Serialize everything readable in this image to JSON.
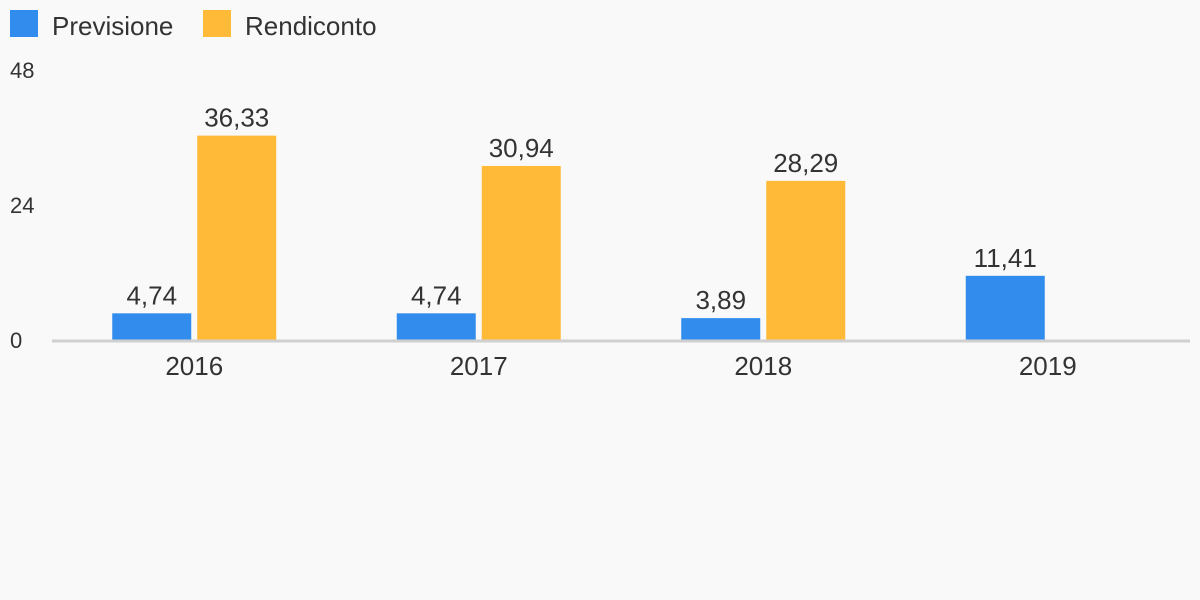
{
  "chart_data": {
    "type": "bar",
    "categories": [
      "2016",
      "2017",
      "2018",
      "2019"
    ],
    "series": [
      {
        "name": "Previsione",
        "color": "#318ced",
        "values": [
          4.74,
          4.74,
          3.89,
          11.41
        ],
        "labels": [
          "4,74",
          "4,74",
          "3,89",
          "11,41"
        ]
      },
      {
        "name": "Rendiconto",
        "color": "#ffba38",
        "values": [
          36.33,
          30.94,
          28.29,
          null
        ],
        "labels": [
          "36,33",
          "30,94",
          "28,29",
          null
        ]
      }
    ],
    "yticks": [
      0,
      24,
      48
    ],
    "ytick_labels": [
      "0",
      "24",
      "48"
    ],
    "ylim": [
      0,
      48
    ],
    "legend_position": "top-left",
    "grid": false,
    "title": "",
    "xlabel": "",
    "ylabel": ""
  }
}
